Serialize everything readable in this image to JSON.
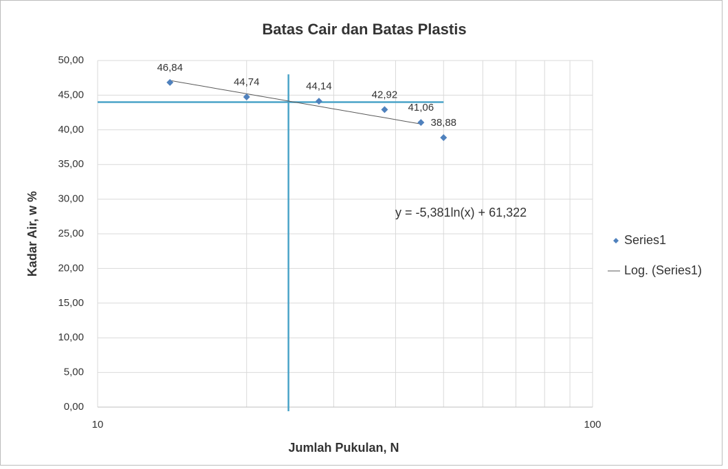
{
  "chart_data": {
    "type": "scatter",
    "title": "Batas Cair dan Batas Plastis",
    "xlabel": "Jumlah Pukulan, N",
    "ylabel": "Kadar Air, w %",
    "log_x": true,
    "grid": true,
    "legend": "right",
    "xlim": [
      10,
      100
    ],
    "xticks": [
      10,
      100
    ],
    "xminor": [
      20,
      30,
      40,
      50,
      60,
      70,
      80,
      90
    ],
    "ylim": [
      0,
      50
    ],
    "yticks": [
      {
        "value": 0,
        "label": "0,00"
      },
      {
        "value": 5,
        "label": "5,00"
      },
      {
        "value": 10,
        "label": "10,00"
      },
      {
        "value": 15,
        "label": "15,00"
      },
      {
        "value": 20,
        "label": "20,00"
      },
      {
        "value": 25,
        "label": "25,00"
      },
      {
        "value": 30,
        "label": "30,00"
      },
      {
        "value": 35,
        "label": "35,00"
      },
      {
        "value": 40,
        "label": "40,00"
      },
      {
        "value": 45,
        "label": "45,00"
      },
      {
        "value": 50,
        "label": "50,00"
      }
    ],
    "series": [
      {
        "name": "Series1",
        "color": "#4f81bd",
        "x": [
          14,
          20,
          28,
          38,
          45,
          50
        ],
        "values": [
          46.84,
          44.74,
          44.14,
          42.92,
          41.06,
          38.88
        ],
        "value_labels": [
          "46,84",
          "44,74",
          "44,14",
          "42,92",
          "41,06",
          "38,88"
        ]
      }
    ],
    "trendline": {
      "name": "Log. (Series1)",
      "color": "#595959",
      "a": -5.381,
      "b": 61.322,
      "x_range": [
        14,
        45
      ],
      "equation": "y = -5,381ln(x) + 61,322"
    },
    "reference_lines": {
      "color": "#4aa3c8",
      "x": 24.3,
      "x_line_top": 48,
      "y": 44,
      "y_line_end": 50
    }
  }
}
